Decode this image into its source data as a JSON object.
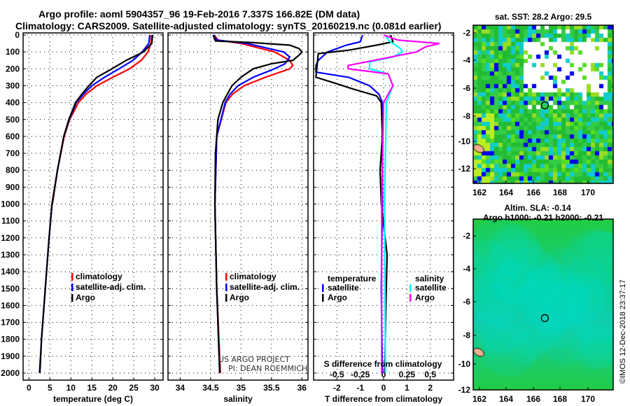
{
  "chart_data": [
    {
      "type": "line",
      "title": "Argo profile: aoml 5904357_96 19-Feb-2016 7.337S 166.82E (DM data)",
      "subtitle": "Climatology: CARS2009. Satellite-adjusted climatology: synTS_20160219.nc (0.081d earlier)",
      "xlabel": "temperature (deg C)",
      "ylabel": "",
      "xlim": [
        -1.4,
        32
      ],
      "ylim": [
        2040,
        -10
      ],
      "xticks": [
        "0",
        "5",
        "10",
        "15",
        "20",
        "25",
        "30"
      ],
      "yticks": [
        "0",
        "100",
        "200",
        "300",
        "400",
        "500",
        "600",
        "700",
        "800",
        "900",
        "1000",
        "1100",
        "1200",
        "1300",
        "1400",
        "1500",
        "1600",
        "1700",
        "1800",
        "1900",
        "2000"
      ],
      "grid": true,
      "legend": [
        "climatology",
        "satellite-adj. clim.",
        "Argo"
      ],
      "legend_position": "bottom-center",
      "series": [
        {
          "name": "climatology",
          "color": "#ff0000",
          "points": [
            [
              0,
              29.2
            ],
            [
              50,
              29.1
            ],
            [
              100,
              28.4
            ],
            [
              150,
              26.8
            ],
            [
              200,
              24
            ],
            [
              250,
              20
            ],
            [
              300,
              16.2
            ],
            [
              350,
              13.6
            ],
            [
              400,
              11.8
            ],
            [
              500,
              9.7
            ],
            [
              600,
              8.4
            ],
            [
              800,
              6.8
            ],
            [
              1000,
              5.6
            ]
          ]
        },
        {
          "name": "satellite-adj. clim.",
          "color": "#0000ff",
          "points": [
            [
              0,
              28.8
            ],
            [
              50,
              28.6
            ],
            [
              100,
              27
            ],
            [
              150,
              24.8
            ],
            [
              200,
              21.5
            ],
            [
              250,
              18
            ],
            [
              300,
              15
            ],
            [
              350,
              13
            ],
            [
              400,
              11.3
            ],
            [
              500,
              9.6
            ],
            [
              600,
              8.3
            ],
            [
              800,
              6.8
            ],
            [
              1000,
              5.5
            ],
            [
              1200,
              4.8
            ],
            [
              1500,
              3.9
            ],
            [
              1800,
              3
            ],
            [
              2000,
              2.5
            ]
          ]
        },
        {
          "name": "Argo",
          "color": "#000000",
          "points": [
            [
              0,
              29.5
            ],
            [
              50,
              29.3
            ],
            [
              100,
              27.3
            ],
            [
              150,
              23.2
            ],
            [
              200,
              19.8
            ],
            [
              250,
              16.2
            ],
            [
              300,
              14.3
            ],
            [
              350,
              12.6
            ],
            [
              400,
              11.1
            ],
            [
              500,
              9.5
            ],
            [
              600,
              8.3
            ],
            [
              800,
              6.8
            ],
            [
              1000,
              5.5
            ],
            [
              1200,
              4.8
            ],
            [
              1500,
              3.9
            ],
            [
              1800,
              3
            ],
            [
              2000,
              2.6
            ]
          ]
        }
      ]
    },
    {
      "type": "line",
      "xlabel": "salinity",
      "xlim": [
        33.8,
        36.1
      ],
      "ylim": [
        2040,
        -10
      ],
      "xticks": [
        "34",
        "34.5",
        "35",
        "35.5",
        "36"
      ],
      "grid": true,
      "legend": [
        "climatology",
        "satellite-adj. clim.",
        "Argo"
      ],
      "legend_position": "bottom-center",
      "annotation": [
        "US ARGO PROJECT",
        "PI: DEAN ROEMMICH"
      ],
      "series": [
        {
          "name": "climatology",
          "color": "#ff0000",
          "points": [
            [
              0,
              34.56
            ],
            [
              30,
              34.62
            ],
            [
              50,
              35.0
            ],
            [
              100,
              35.55
            ],
            [
              150,
              35.8
            ],
            [
              180,
              35.85
            ],
            [
              200,
              35.8
            ],
            [
              250,
              35.4
            ],
            [
              300,
              35.05
            ],
            [
              350,
              34.86
            ],
            [
              400,
              34.75
            ],
            [
              600,
              34.6
            ],
            [
              1000,
              34.57
            ],
            [
              1500,
              34.6
            ],
            [
              2000,
              34.66
            ]
          ]
        },
        {
          "name": "satellite-adj. clim.",
          "color": "#0000ff",
          "points": [
            [
              0,
              34.55
            ],
            [
              30,
              34.6
            ],
            [
              50,
              35.1
            ],
            [
              100,
              35.7
            ],
            [
              130,
              35.8
            ],
            [
              170,
              35.72
            ],
            [
              200,
              35.55
            ],
            [
              250,
              35.2
            ],
            [
              300,
              34.95
            ],
            [
              350,
              34.82
            ],
            [
              400,
              34.74
            ],
            [
              600,
              34.6
            ],
            [
              1000,
              34.57
            ],
            [
              1500,
              34.6
            ],
            [
              2000,
              34.65
            ]
          ]
        },
        {
          "name": "Argo",
          "color": "#000000",
          "points": [
            [
              0,
              34.54
            ],
            [
              35,
              34.58
            ],
            [
              45,
              35.2
            ],
            [
              60,
              35.8
            ],
            [
              80,
              35.95
            ],
            [
              100,
              36.0
            ],
            [
              120,
              35.95
            ],
            [
              150,
              35.85
            ],
            [
              170,
              35.5
            ],
            [
              200,
              35.2
            ],
            [
              250,
              35.0
            ],
            [
              300,
              34.85
            ],
            [
              400,
              34.7
            ],
            [
              500,
              34.62
            ],
            [
              700,
              34.58
            ],
            [
              1000,
              34.57
            ],
            [
              1500,
              34.6
            ],
            [
              2000,
              34.65
            ]
          ]
        }
      ]
    },
    {
      "type": "line",
      "xlabel": "T difference from climatology",
      "xlabel2": "S difference from climatology",
      "xlim": [
        -3,
        3
      ],
      "xticks": [
        "-2",
        "-1",
        "0",
        "1",
        "2"
      ],
      "xticks_s": [
        "-0.5",
        "-0.25",
        "0",
        "0.25",
        "0.5"
      ],
      "ylim": [
        2040,
        -10
      ],
      "grid": true,
      "legend_temperature_title": "temperature",
      "legend_salinity_title": "salinity",
      "legend": [
        "satellite",
        "Argo",
        "satellite",
        "Argo"
      ],
      "series": [
        {
          "name": "temperature satellite",
          "color": "#0000ff",
          "var": "T",
          "points": [
            [
              0,
              -0.9
            ],
            [
              40,
              -1.0
            ],
            [
              60,
              -1.6
            ],
            [
              100,
              -2.4
            ],
            [
              150,
              -2.8
            ],
            [
              180,
              -2.9
            ],
            [
              220,
              -2.9
            ],
            [
              250,
              -1.5
            ],
            [
              300,
              -0.6
            ],
            [
              350,
              -0.2
            ],
            [
              400,
              -0.05
            ],
            [
              1000,
              -0.05
            ],
            [
              1500,
              -0.1
            ],
            [
              2000,
              -0.05
            ]
          ]
        },
        {
          "name": "temperature Argo",
          "color": "#000000",
          "var": "T",
          "points": [
            [
              0,
              0.3
            ],
            [
              40,
              0.4
            ],
            [
              60,
              -0.3
            ],
            [
              90,
              -1.5
            ],
            [
              110,
              -2.8
            ],
            [
              250,
              -2.9
            ],
            [
              280,
              -2.2
            ],
            [
              320,
              -1.3
            ],
            [
              360,
              -0.3
            ],
            [
              400,
              -0.1
            ],
            [
              600,
              -0.05
            ],
            [
              800,
              -0.15
            ],
            [
              1000,
              -0.1
            ],
            [
              1300,
              0.15
            ],
            [
              1600,
              0.1
            ],
            [
              2000,
              0.05
            ]
          ]
        },
        {
          "name": "salinity satellite",
          "color": "#00ffff",
          "var": "S",
          "points": [
            [
              0,
              0.02
            ],
            [
              30,
              0.05
            ],
            [
              50,
              0.1
            ],
            [
              80,
              0.18
            ],
            [
              100,
              0.2
            ],
            [
              130,
              0.1
            ],
            [
              160,
              -0.15
            ],
            [
              200,
              -0.15
            ],
            [
              230,
              0.05
            ],
            [
              300,
              0.1
            ],
            [
              400,
              0.03
            ],
            [
              1000,
              0.01
            ],
            [
              2000,
              0.02
            ]
          ]
        },
        {
          "name": "salinity Argo",
          "color": "#ff00ff",
          "var": "S",
          "points": [
            [
              0,
              0.0
            ],
            [
              30,
              0.15
            ],
            [
              50,
              0.6
            ],
            [
              70,
              0.45
            ],
            [
              100,
              0.35
            ],
            [
              150,
              -0.1
            ],
            [
              180,
              -0.38
            ],
            [
              200,
              -0.38
            ],
            [
              230,
              0.05
            ],
            [
              300,
              0.1
            ],
            [
              400,
              0.0
            ],
            [
              1000,
              -0.02
            ],
            [
              2000,
              -0.02
            ]
          ]
        }
      ]
    }
  ],
  "maps": [
    {
      "title": "sat. SST: 28.2 Argo: 29.5",
      "lat_ticks": [
        "-2",
        "-4",
        "-6",
        "-8",
        "-10",
        "-12"
      ],
      "lon_ticks": [
        "162",
        "164",
        "166",
        "168",
        "170"
      ],
      "float_lon": 166.82,
      "float_lat": -7.337
    },
    {
      "title": "Altim. SLA: -0.14",
      "subtitle": "Argo h1000: -0.21 h2000: -0.21",
      "lat_ticks": [
        "-2",
        "-4",
        "-6",
        "-8",
        "-10",
        "-12"
      ],
      "lon_ticks": [
        "162",
        "164",
        "166",
        "168",
        "170"
      ],
      "float_lon": 166.82,
      "float_lat": -7.337
    }
  ],
  "footer": "©IMOS 12-Dec-2018 23:37:17"
}
